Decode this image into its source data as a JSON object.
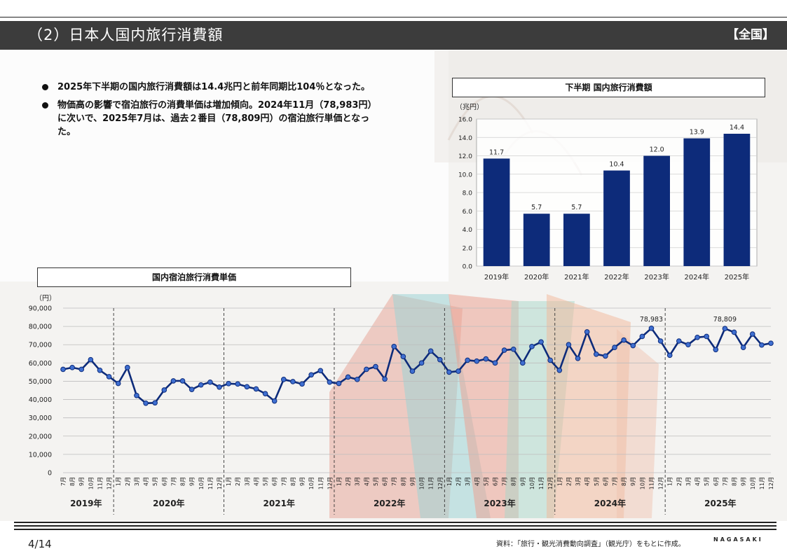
{
  "header": {
    "title": "（2）日本人国内旅行消費額",
    "region": "【全国】"
  },
  "bullets": [
    "2025年下半期の国内旅行消費額は14.4兆円と前年同期比104％となった。",
    "物価高の影響で宿泊旅行の消費単価は増加傾向。2024年11月（78,983円）に次いで、2025年7月は、過去２番目（78,809円）の宿泊旅行単価となった。"
  ],
  "bar_chart_title": "下半期 国内旅行消費額",
  "line_chart_title": "国内宿泊旅行消費単価",
  "footer": {
    "page": "4/14",
    "source": "資料：「旅行・観光消費動向調査」（観光庁）をもとに作成。",
    "brand": "NAGASAKI"
  },
  "colors": {
    "bar": "#0d2b7a",
    "line": "#0d2b7a",
    "marker": "#3f6fd1",
    "header": "#3c3c3c"
  },
  "chart_data": [
    {
      "type": "bar",
      "title": "下半期 国内旅行消費額",
      "ylabel": "（兆円）",
      "categories": [
        "2019年",
        "2020年",
        "2021年",
        "2022年",
        "2023年",
        "2024年",
        "2025年"
      ],
      "values": [
        11.7,
        5.7,
        5.7,
        10.4,
        12.0,
        13.9,
        14.4
      ],
      "data_labels": [
        "11.7",
        "5.7",
        "5.7",
        "10.4",
        "12.0",
        "13.9",
        "14.4"
      ],
      "ylim": [
        0,
        16
      ],
      "yticks": [
        "0.0",
        "2.0",
        "4.0",
        "6.0",
        "8.0",
        "10.0",
        "12.0",
        "14.0",
        "16.0"
      ],
      "grid": true
    },
    {
      "type": "line",
      "title": "国内宿泊旅行消費単価",
      "ylabel": "（円）",
      "ylim": [
        0,
        90000
      ],
      "yticks": [
        "0",
        "10,000",
        "20,000",
        "30,000",
        "40,000",
        "50,000",
        "60,000",
        "70,000",
        "80,000",
        "90,000"
      ],
      "grid": true,
      "years": [
        {
          "label": "2019年",
          "months": 6
        },
        {
          "label": "2020年",
          "months": 12
        },
        {
          "label": "2021年",
          "months": 12
        },
        {
          "label": "2022年",
          "months": 12
        },
        {
          "label": "2023年",
          "months": 12
        },
        {
          "label": "2024年",
          "months": 12
        },
        {
          "label": "2025年",
          "months": 12
        }
      ],
      "month_labels": [
        "7月",
        "8月",
        "9月",
        "10月",
        "11月",
        "12月",
        "1月",
        "2月",
        "3月",
        "4月",
        "5月",
        "6月",
        "7月",
        "8月",
        "9月",
        "10月",
        "11月",
        "12月",
        "1月",
        "2月",
        "3月",
        "4月",
        "5月",
        "6月",
        "7月",
        "8月",
        "9月",
        "10月",
        "11月",
        "12月",
        "1月",
        "2月",
        "3月",
        "4月",
        "5月",
        "6月",
        "7月",
        "8月",
        "9月",
        "10月",
        "11月",
        "12月",
        "1月",
        "2月",
        "3月",
        "4月",
        "5月",
        "6月",
        "7月",
        "8月",
        "9月",
        "10月",
        "11月",
        "12月",
        "1月",
        "2月",
        "3月",
        "4月",
        "5月",
        "6月",
        "7月",
        "8月",
        "9月",
        "10月",
        "11月",
        "12月",
        "1月",
        "2月",
        "3月",
        "4月",
        "5月",
        "6月",
        "7月",
        "8月",
        "9月",
        "10月",
        "11月",
        "12月"
      ],
      "values": [
        56500,
        57500,
        56500,
        61800,
        56000,
        52500,
        48800,
        57500,
        42200,
        38000,
        38200,
        45200,
        50200,
        50200,
        45500,
        48000,
        49500,
        46800,
        48700,
        48500,
        47000,
        45800,
        43200,
        39200,
        51000,
        49800,
        48500,
        53500,
        55800,
        49500,
        48800,
        52300,
        51000,
        56500,
        58000,
        51200,
        69000,
        63500,
        55500,
        60000,
        66500,
        61800,
        55000,
        55500,
        61500,
        61000,
        62200,
        60000,
        67000,
        67500,
        60000,
        69000,
        71500,
        61500,
        56000,
        70000,
        62500,
        77000,
        64800,
        63800,
        68500,
        72500,
        69500,
        74500,
        78983,
        72000,
        64200,
        72000,
        70000,
        74000,
        74500,
        67300,
        78809,
        76800,
        68500,
        75800,
        69800,
        70800
      ],
      "annotations": [
        {
          "index": 64,
          "label": "78,983"
        },
        {
          "index": 72,
          "label": "78,809"
        }
      ]
    }
  ]
}
